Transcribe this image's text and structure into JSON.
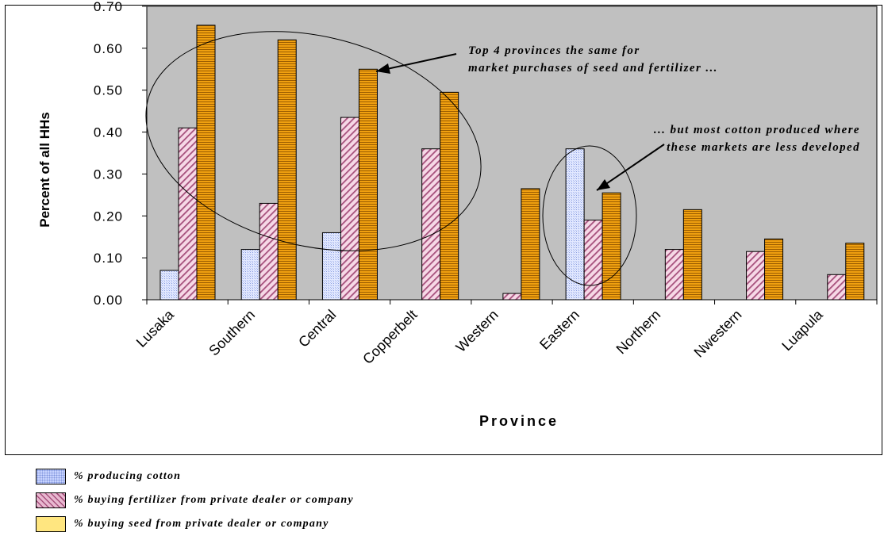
{
  "chart_data": {
    "type": "bar",
    "categories": [
      "Lusaka",
      "Southern",
      "Central",
      "Copperbelt",
      "Western",
      "Eastern",
      "Northern",
      "Nwestern",
      "Luapula"
    ],
    "series": [
      {
        "name": "% producing cotton",
        "values": [
          0.07,
          0.12,
          0.16,
          0.0,
          0.0,
          0.36,
          0.0,
          0.0,
          0.0
        ],
        "color": "#ccd8ff"
      },
      {
        "name": "% buying fertilizer from private dealer or company",
        "values": [
          0.41,
          0.23,
          0.435,
          0.36,
          0.015,
          0.19,
          0.12,
          0.115,
          0.06
        ],
        "color": "#f0c4dc"
      },
      {
        "name": "% buying seed from private dealer or company",
        "values": [
          0.655,
          0.62,
          0.55,
          0.495,
          0.265,
          0.255,
          0.215,
          0.145,
          0.135
        ],
        "color": "#ee9a00"
      }
    ],
    "xlabel": "Province",
    "ylabel": "Percent of all HHs",
    "ylim": [
      0,
      0.7
    ],
    "yticks": [
      "0.00",
      "0.10",
      "0.20",
      "0.30",
      "0.40",
      "0.50",
      "0.60",
      "0.70"
    ],
    "grid": false,
    "legend": "bottom",
    "annotations": [
      {
        "lines": [
          "Top 4 provinces the same for",
          "market purchases of seed and fertilizer ..."
        ]
      },
      {
        "lines": [
          "... but most cotton produced where",
          "these markets are less developed"
        ]
      }
    ]
  },
  "legend_swatch_colors": [
    "#c8d4ff",
    "#e8b8d0",
    "#ffe680"
  ]
}
